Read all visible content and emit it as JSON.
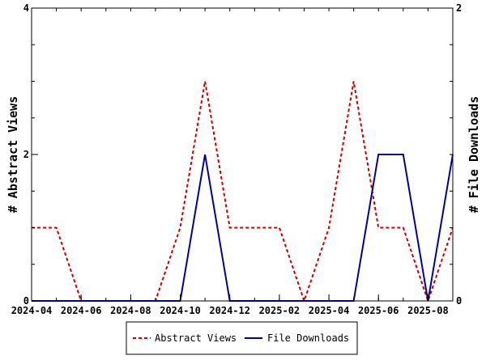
{
  "chart_data": {
    "type": "line",
    "title": "",
    "xlabel": "",
    "ylabel": "# Abstract Views",
    "y2label": "# File Downloads",
    "ylim": [
      0,
      4
    ],
    "y2lim": [
      0,
      2
    ],
    "yticks": [
      "0",
      "2",
      "4"
    ],
    "y2ticks": [
      "0",
      "2"
    ],
    "x_tick_labels": [
      "2024-04",
      "2024-06",
      "2024-08",
      "2024-10",
      "2024-12",
      "2025-02",
      "2025-04",
      "2025-06",
      "2025-08"
    ],
    "x": [
      "2024-04",
      "2024-05",
      "2024-06",
      "2024-07",
      "2024-08",
      "2024-09",
      "2024-10",
      "2024-11",
      "2024-12",
      "2025-01",
      "2025-02",
      "2025-03",
      "2025-04",
      "2025-05",
      "2025-06",
      "2025-07",
      "2025-08",
      "2025-09"
    ],
    "series": [
      {
        "name": "Abstract Views",
        "axis": "left",
        "color": "#cc0000",
        "style": "dashed",
        "values": [
          1,
          1,
          0,
          0,
          0,
          0,
          1,
          3,
          1,
          1,
          1,
          0,
          1,
          3,
          1,
          1,
          0,
          1
        ]
      },
      {
        "name": "File Downloads",
        "axis": "right",
        "color": "#000099",
        "style": "solid",
        "values": [
          0,
          0,
          0,
          0,
          0,
          0,
          0,
          1,
          0,
          0,
          0,
          0,
          0,
          0,
          1,
          1,
          0,
          1
        ]
      }
    ],
    "legend_position": "bottom-center",
    "grid": false
  }
}
